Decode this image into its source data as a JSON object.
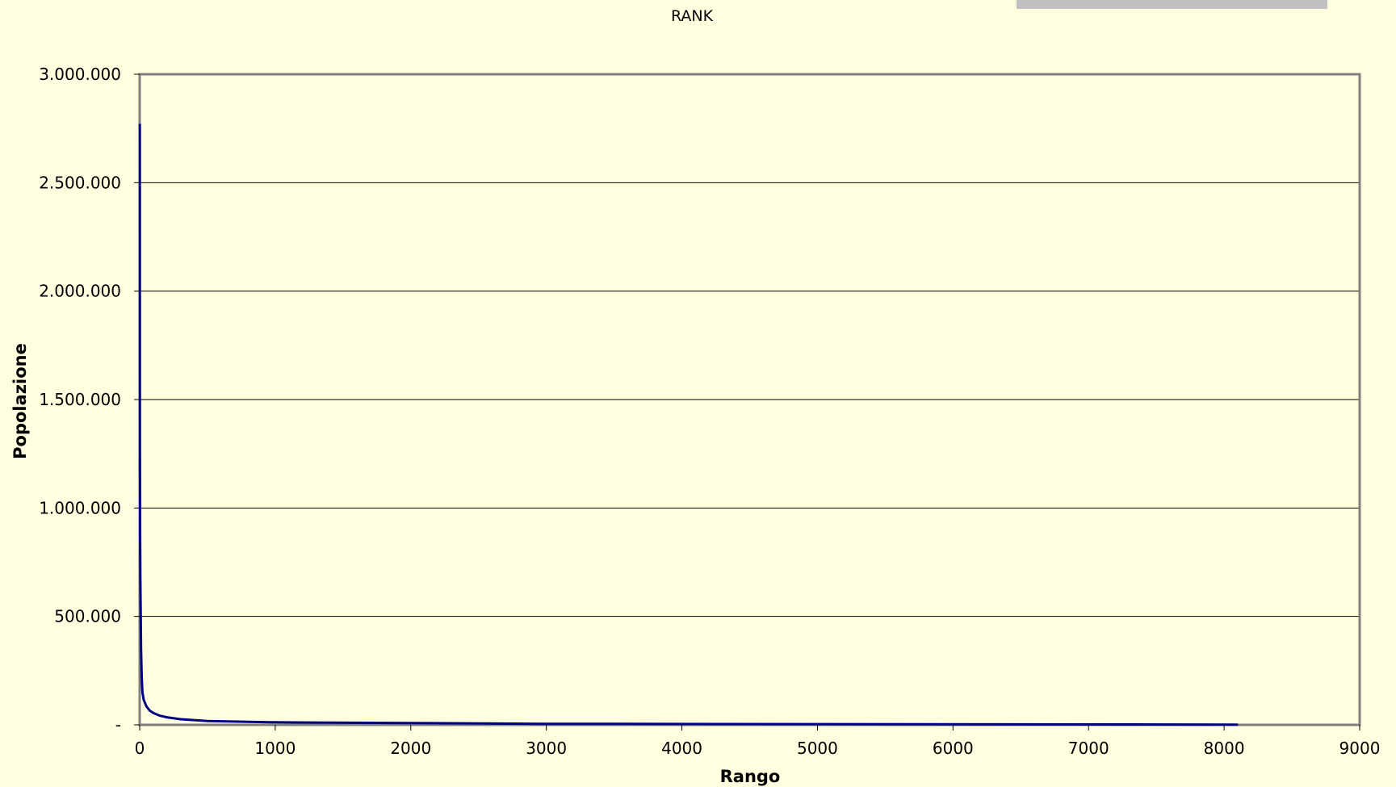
{
  "chart_data": {
    "type": "line",
    "title": "RANK",
    "xlabel": "Rango",
    "ylabel": "Popolazione",
    "xlim": [
      0,
      9000
    ],
    "ylim": [
      0,
      3000000
    ],
    "x_ticks": [
      0,
      1000,
      2000,
      3000,
      4000,
      5000,
      6000,
      7000,
      8000,
      9000
    ],
    "y_ticks": [
      0,
      500000,
      1000000,
      1500000,
      2000000,
      2500000,
      3000000
    ],
    "x_tick_labels": [
      "0",
      "1000",
      "2000",
      "3000",
      "4000",
      "5000",
      "6000",
      "7000",
      "8000",
      "9000"
    ],
    "y_tick_labels": [
      "-",
      "500.000",
      "1.000.000",
      "1.500.000",
      "2.000.000",
      "2.500.000",
      "3.000.000"
    ],
    "grid": "horizontal",
    "legend": "none",
    "series": [
      {
        "color": "#000080",
        "x": [
          1,
          2,
          3,
          5,
          10,
          15,
          20,
          30,
          50,
          75,
          100,
          150,
          200,
          300,
          500,
          950,
          2950,
          8100
        ],
        "y": [
          2770000,
          1300000,
          910000,
          690000,
          350000,
          220000,
          150000,
          115000,
          85000,
          65000,
          55000,
          42000,
          35000,
          26000,
          18000,
          12000,
          5000,
          1000
        ]
      }
    ]
  },
  "colors": {
    "background": "#ffffe0",
    "plot_border": "#808080",
    "gridline": "#000000",
    "series_line": "#000080",
    "top_bar": "#c0c0c0"
  }
}
